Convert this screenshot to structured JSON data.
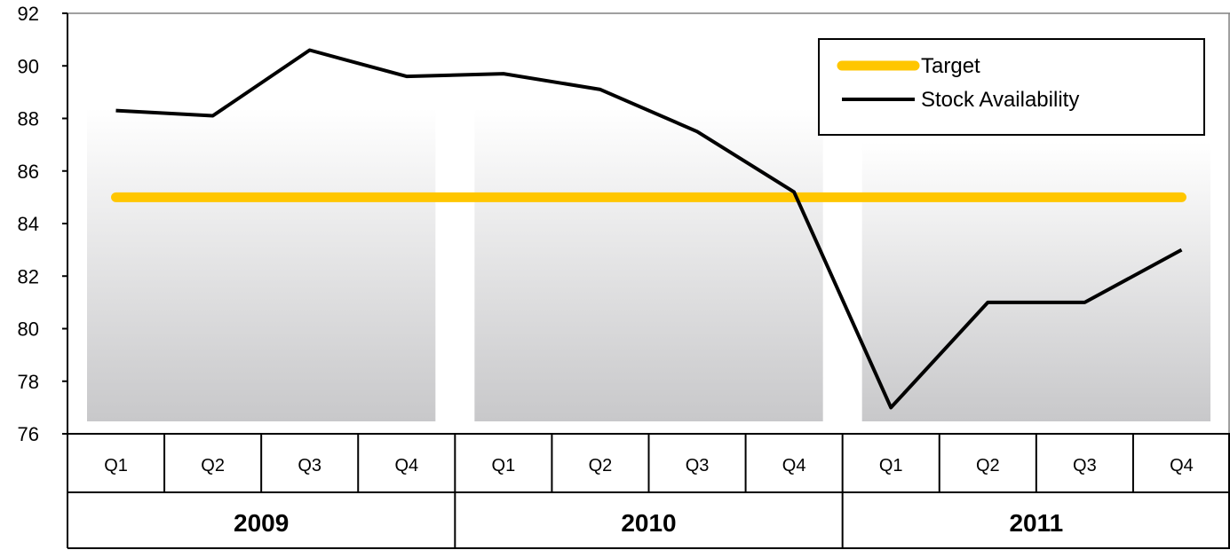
{
  "chart_data": {
    "type": "line",
    "title": "",
    "xlabel": "",
    "ylabel": "",
    "ylim": [
      76,
      92
    ],
    "yticks": [
      "76",
      "78",
      "80",
      "82",
      "84",
      "86",
      "88",
      "90",
      "92"
    ],
    "years": [
      {
        "label": "2009",
        "quarters": [
          "Q1",
          "Q2",
          "Q3",
          "Q4"
        ]
      },
      {
        "label": "2010",
        "quarters": [
          "Q1",
          "Q2",
          "Q3",
          "Q4"
        ]
      },
      {
        "label": "2011",
        "quarters": [
          "Q1",
          "Q2",
          "Q3",
          "Q4"
        ]
      }
    ],
    "series": [
      {
        "name": "Target",
        "color": "#FFC600",
        "values": [
          85,
          85,
          85,
          85,
          85,
          85,
          85,
          85,
          85,
          85,
          85,
          85
        ]
      },
      {
        "name": "Stock Availability",
        "color": "#000000",
        "values": [
          88.3,
          88.1,
          90.6,
          89.6,
          89.7,
          89.1,
          87.5,
          85.2,
          77.0,
          81.0,
          81.0,
          83.0
        ]
      }
    ],
    "legend": {
      "position": "top-right"
    },
    "grid": false,
    "background_bands": [
      {
        "year": "2009",
        "top": 88.4
      },
      {
        "year": "2010",
        "top": 88.4
      },
      {
        "year": "2011",
        "top": 87.1
      }
    ]
  }
}
